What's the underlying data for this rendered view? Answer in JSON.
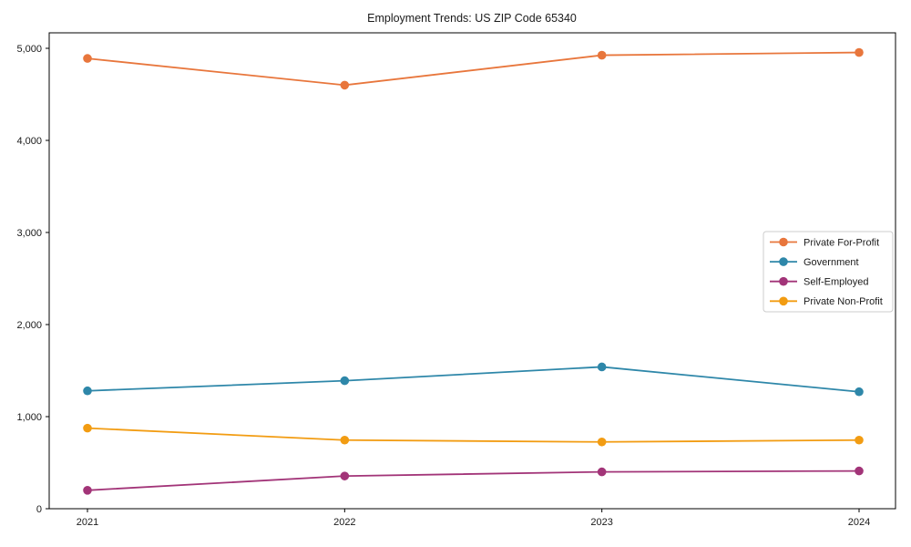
{
  "title": "Employment Trends: US ZIP Code 65340",
  "chart_data": {
    "type": "line",
    "title": "Employment Trends: US ZIP Code 65340",
    "xlabel": "",
    "ylabel": "",
    "x": [
      2021,
      2022,
      2023,
      2024
    ],
    "x_tick_labels": [
      "2021",
      "2022",
      "2023",
      "2024"
    ],
    "y_ticks": [
      0,
      1000,
      2000,
      3000,
      4000,
      5000
    ],
    "y_tick_labels": [
      "0",
      "1,000",
      "2,000",
      "3,000",
      "4,000",
      "5,000"
    ],
    "ylim": [
      0,
      5000
    ],
    "grid": false,
    "legend_position": "center-right",
    "marker": "circle",
    "series": [
      {
        "name": "Private For-Profit",
        "color": "#e8763c",
        "values": [
          4890,
          4600,
          4925,
          4955
        ]
      },
      {
        "name": "Government",
        "color": "#2e87a9",
        "values": [
          1280,
          1390,
          1540,
          1270
        ]
      },
      {
        "name": "Self-Employed",
        "color": "#a23478",
        "values": [
          200,
          355,
          400,
          410
        ]
      },
      {
        "name": "Private Non-Profit",
        "color": "#f29c12",
        "values": [
          875,
          745,
          725,
          745
        ]
      }
    ]
  },
  "colors": {
    "background": "#ffffff",
    "text": "#1a1a1a",
    "axis": "#000000",
    "legend_border": "#cccccc",
    "legend_fill": "#ffffff"
  }
}
